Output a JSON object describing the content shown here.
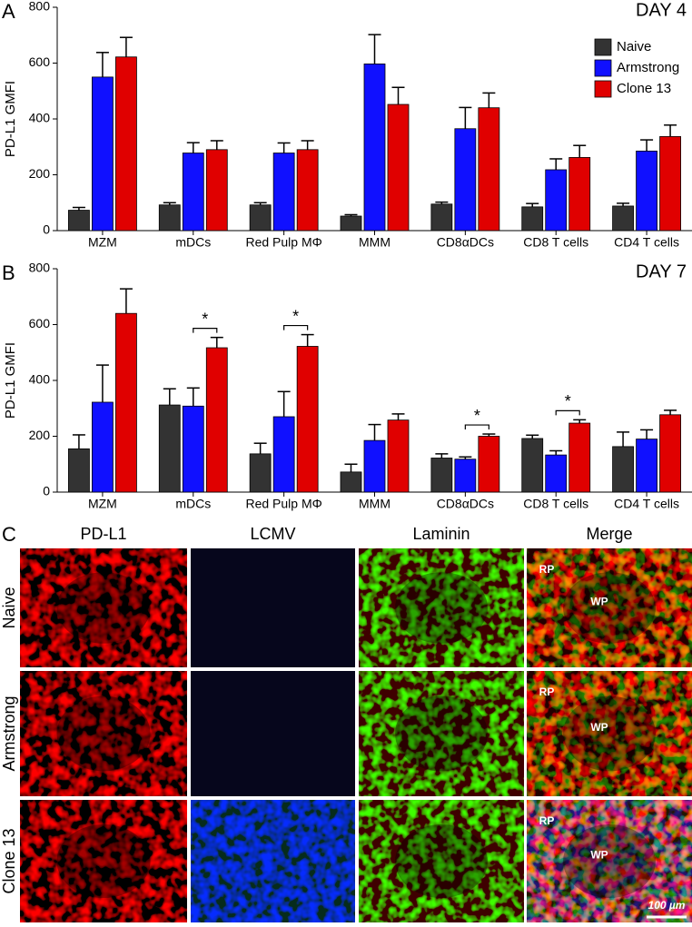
{
  "chart_data": [
    {
      "type": "bar",
      "panel_label": "A",
      "title": "DAY 4",
      "ylabel": "PD-L1 GMFI",
      "categories": [
        "MZM",
        "mDCs",
        "Red Pulp MΦ",
        "MMM",
        "CD8αDCs",
        "CD8 T cells",
        "CD4 T cells"
      ],
      "series": [
        {
          "name": "Naive",
          "color": "#333333",
          "values": [
            73,
            92,
            92,
            52,
            95,
            85,
            88
          ],
          "errors": [
            10,
            8,
            8,
            5,
            7,
            12,
            10
          ]
        },
        {
          "name": "Armstrong",
          "color": "#1010ff",
          "values": [
            550,
            278,
            278,
            597,
            365,
            218,
            285
          ],
          "errors": [
            88,
            37,
            36,
            105,
            76,
            39,
            40
          ]
        },
        {
          "name": "Clone 13",
          "color": "#e00000",
          "values": [
            622,
            290,
            290,
            452,
            440,
            262,
            337
          ],
          "errors": [
            70,
            32,
            32,
            61,
            53,
            43,
            41
          ]
        }
      ],
      "ylim": [
        0,
        800
      ],
      "yticks": [
        0,
        200,
        400,
        600,
        800
      ],
      "legend": "upper right"
    },
    {
      "type": "bar",
      "panel_label": "B",
      "title": "DAY 7",
      "ylabel": "PD-L1 GMFI",
      "categories": [
        "MZM",
        "mDCs",
        "Red Pulp MΦ",
        "MMM",
        "CD8αDCs",
        "CD8 T cells",
        "CD4 T cells"
      ],
      "series": [
        {
          "name": "Naive",
          "color": "#333333",
          "values": [
            155,
            312,
            137,
            72,
            122,
            192,
            163
          ],
          "errors": [
            50,
            58,
            38,
            28,
            15,
            12,
            52
          ]
        },
        {
          "name": "Armstrong",
          "color": "#1010ff",
          "values": [
            322,
            308,
            270,
            185,
            118,
            133,
            190
          ],
          "errors": [
            133,
            65,
            90,
            57,
            8,
            15,
            33
          ]
        },
        {
          "name": "Clone 13",
          "color": "#e00000",
          "values": [
            640,
            517,
            522,
            258,
            200,
            247,
            277
          ],
          "errors": [
            88,
            37,
            42,
            22,
            8,
            12,
            16
          ]
        }
      ],
      "ylim": [
        0,
        800
      ],
      "yticks": [
        0,
        200,
        400,
        600,
        800
      ],
      "significance": [
        {
          "category_index": 1,
          "text": "*"
        },
        {
          "category_index": 2,
          "text": "*"
        },
        {
          "category_index": 4,
          "text": "*"
        },
        {
          "category_index": 5,
          "text": "*"
        }
      ]
    }
  ],
  "panel_c": {
    "label": "C",
    "columns": [
      "PD-L1",
      "LCMV",
      "Laminin",
      "Merge"
    ],
    "rows": [
      "Naive",
      "Armstrong",
      "Clone 13"
    ],
    "region_labels": [
      [
        "RP",
        "WP"
      ],
      [
        "RP",
        "WP"
      ],
      [
        "RP",
        "WP"
      ]
    ],
    "scale_bar": "100 µm"
  }
}
